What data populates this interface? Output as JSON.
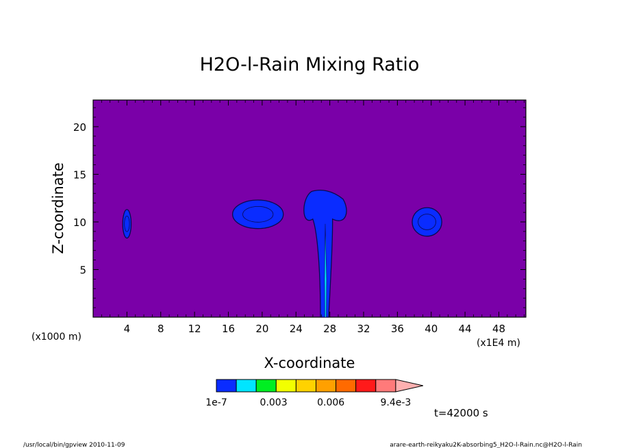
{
  "chart_data": {
    "type": "heatmap",
    "title": "H2O-l-Rain Mixing Ratio",
    "xlabel": "X-coordinate",
    "ylabel": "Z-coordinate",
    "x_unit_left": "(x1000 m)",
    "x_unit_right": "(x1E4 m)",
    "time_label": "t=42000 s",
    "xlim": [
      0,
      51.2
    ],
    "ylim": [
      0,
      22.8
    ],
    "x_ticks": [
      4,
      8,
      12,
      16,
      20,
      24,
      28,
      32,
      36,
      40,
      44,
      48
    ],
    "y_ticks": [
      5,
      10,
      15,
      20
    ],
    "background_color": "#7a00a8",
    "colorbar": {
      "colors": [
        "#0a2cff",
        "#00e5ff",
        "#00ee22",
        "#f2ff00",
        "#ffd200",
        "#ffa000",
        "#ff6a00",
        "#ff1a1a",
        "#ff7a7a",
        "#ffb0b0"
      ],
      "labels": [
        {
          "value": 0,
          "text": "1e-7"
        },
        {
          "value": 0.003,
          "text": "0.003"
        },
        {
          "value": 0.006,
          "text": "0.006"
        },
        {
          "value": 0.0094,
          "text": "9.4e-3"
        }
      ]
    },
    "features": [
      {
        "name": "cell-x4",
        "x": 4.0,
        "z": 9.8,
        "width": 1.0,
        "height": 3.0
      },
      {
        "name": "cell-x19",
        "x": 19.5,
        "z": 10.8,
        "width": 6.0,
        "height": 3.0
      },
      {
        "name": "main-cell-x27",
        "x": 27.5,
        "z": 6.5,
        "width": 5.5,
        "height": 13.0
      },
      {
        "name": "cell-x39",
        "x": 39.5,
        "z": 10.0,
        "width": 3.5,
        "height": 3.0
      }
    ]
  },
  "footer": {
    "left": "/usr/local/bin/gpview 2010-11-09",
    "right": "arare-earth-reikyaku2K-absorbing5_H2O-l-Rain.nc@H2O-l-Rain"
  }
}
